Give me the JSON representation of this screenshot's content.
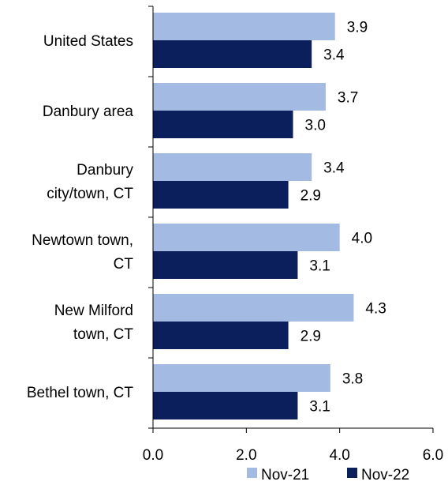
{
  "chart_data": {
    "type": "bar",
    "orientation": "horizontal",
    "categories": [
      [
        "United States"
      ],
      [
        "Danbury area"
      ],
      [
        "Danbury",
        "city/town, CT"
      ],
      [
        "Newtown town,",
        "CT"
      ],
      [
        "New Milford",
        "town, CT"
      ],
      [
        "Bethel town, CT"
      ]
    ],
    "series": [
      {
        "name": "Nov-21",
        "color": "#a3bbe3",
        "values": [
          3.9,
          3.7,
          3.4,
          4.0,
          4.3,
          3.8
        ],
        "labels": [
          "3.9",
          "3.7",
          "3.4",
          "4.0",
          "4.3",
          "3.8"
        ]
      },
      {
        "name": "Nov-22",
        "color": "#0b1f5c",
        "values": [
          3.4,
          3.0,
          2.9,
          3.1,
          2.9,
          3.1
        ],
        "labels": [
          "3.4",
          "3.0",
          "2.9",
          "3.1",
          "2.9",
          "3.1"
        ]
      }
    ],
    "xlim": [
      0,
      6
    ],
    "xticks": [
      0,
      2,
      4,
      6
    ],
    "xtick_labels": [
      "0.0",
      "2.0",
      "4.0",
      "6.0"
    ],
    "title": "",
    "xlabel": "",
    "ylabel": "",
    "grid": false,
    "legend_position": "bottom-right"
  }
}
